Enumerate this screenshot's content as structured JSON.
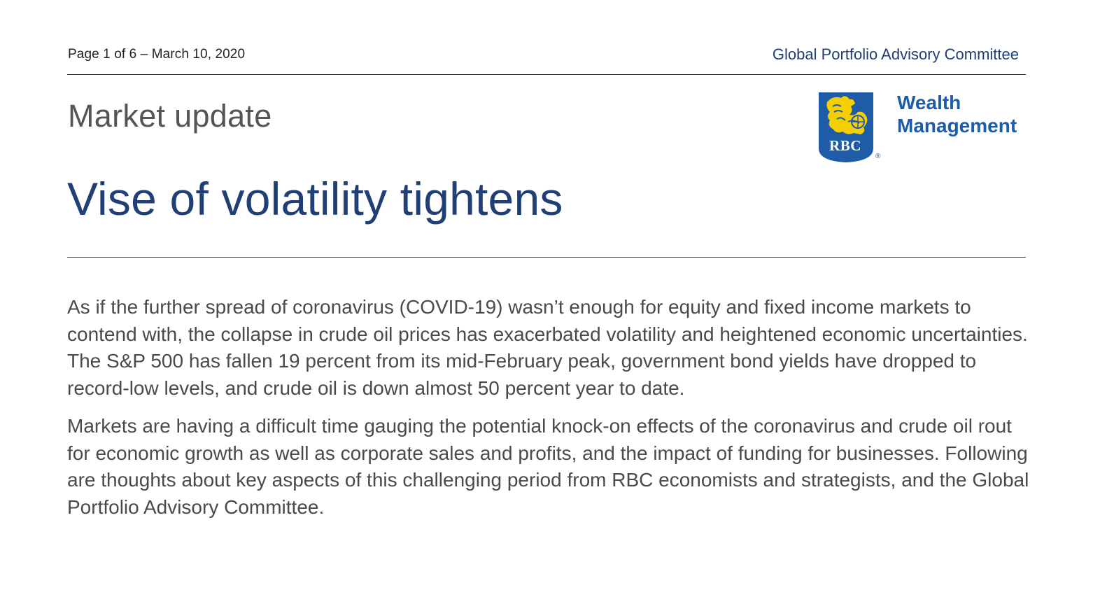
{
  "header": {
    "page_info": "Page 1 of 6 – March 10, 2020",
    "committee": "Global Portfolio Advisory Committee"
  },
  "section_label": "Market update",
  "title": "Vise of volatility tightens",
  "logo": {
    "brand": "RBC",
    "line1": "Wealth",
    "line2": "Management",
    "registered": "®",
    "colors": {
      "shield_blue": "#1f5ca8",
      "lion_yellow": "#f5d000"
    }
  },
  "body": {
    "paragraphs": [
      "As if the further spread of coronavirus (COVID-19) wasn’t enough for equity and fixed income markets to contend with, the collapse in crude oil prices has exacerbated volatility and heightened economic uncertainties. The S&P 500 has fallen 19 percent from its mid-February peak, government bond yields have dropped to record-low levels, and crude oil is down almost 50 percent year to date.",
      "Markets are having a difficult time gauging the potential knock-on effects of the coronavirus and crude oil rout for economic growth as well as corporate sales and profits, and the impact of funding for businesses. Following are thoughts about key aspects of this challenging period from RBC economists and strategists, and the Global Portfolio Advisory Committee."
    ]
  },
  "colors": {
    "title_blue": "#1f3f75",
    "body_gray": "#4a4a4a",
    "rule": "#333333"
  }
}
